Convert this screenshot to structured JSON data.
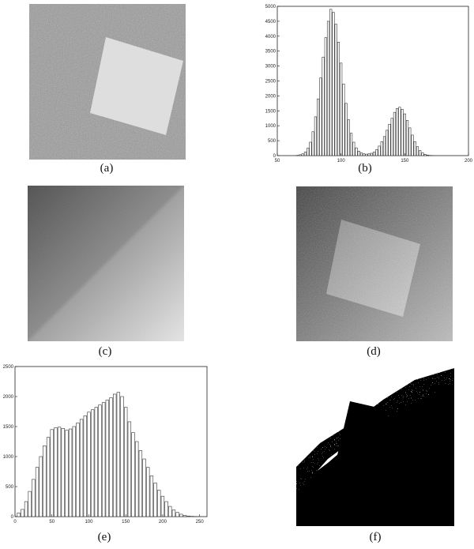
{
  "captions": {
    "a": "(a)",
    "b": "(b)",
    "c": "(c)",
    "d": "(d)",
    "e": "(e)",
    "f": "(f)"
  },
  "chart_data": [
    {
      "type": "bar",
      "panel": "b",
      "xlim": [
        50,
        200
      ],
      "ylim": [
        0,
        5000
      ],
      "xticks": [
        "50",
        "100",
        "150",
        "200"
      ],
      "yticks": [
        "0",
        "500",
        "1000",
        "1500",
        "2000",
        "2500",
        "3000",
        "3500",
        "4000",
        "4500",
        "5000"
      ],
      "x": [
        66,
        68,
        70,
        72,
        74,
        76,
        78,
        80,
        82,
        84,
        86,
        88,
        90,
        92,
        94,
        96,
        98,
        100,
        102,
        104,
        106,
        108,
        110,
        112,
        114,
        116,
        118,
        120,
        122,
        124,
        126,
        128,
        130,
        132,
        134,
        136,
        138,
        140,
        142,
        144,
        146,
        148,
        150,
        152,
        154,
        156,
        158,
        160,
        162,
        164,
        166,
        168,
        170,
        172,
        174,
        176,
        178,
        180,
        182
      ],
      "values": [
        10,
        30,
        60,
        120,
        250,
        450,
        800,
        1300,
        1900,
        2600,
        3300,
        3950,
        4500,
        4900,
        4800,
        4400,
        3800,
        3100,
        2400,
        1750,
        1200,
        750,
        450,
        260,
        150,
        90,
        60,
        50,
        60,
        80,
        120,
        200,
        320,
        470,
        640,
        850,
        1050,
        1250,
        1450,
        1580,
        1620,
        1550,
        1400,
        1180,
        930,
        690,
        470,
        300,
        170,
        90,
        45,
        20,
        8,
        3,
        0,
        0,
        0,
        0,
        0
      ]
    },
    {
      "type": "bar",
      "panel": "e",
      "xlim": [
        0,
        260
      ],
      "ylim": [
        0,
        2500
      ],
      "xticks": [
        "0",
        "50",
        "100",
        "150",
        "200",
        "250"
      ],
      "yticks": [
        "0",
        "500",
        "1000",
        "1500",
        "2000",
        "2500"
      ],
      "x": [
        5,
        10,
        15,
        20,
        25,
        30,
        35,
        40,
        45,
        50,
        55,
        60,
        65,
        70,
        75,
        80,
        85,
        90,
        95,
        100,
        105,
        110,
        115,
        120,
        125,
        130,
        135,
        140,
        145,
        150,
        155,
        160,
        165,
        170,
        175,
        180,
        185,
        190,
        195,
        200,
        205,
        210,
        215,
        220,
        225,
        230,
        235,
        240,
        245
      ],
      "values": [
        60,
        120,
        250,
        420,
        620,
        820,
        1000,
        1180,
        1320,
        1450,
        1480,
        1490,
        1470,
        1440,
        1460,
        1500,
        1560,
        1620,
        1680,
        1740,
        1780,
        1820,
        1860,
        1900,
        1940,
        1980,
        2040,
        2070,
        2000,
        1820,
        1580,
        1400,
        1250,
        1100,
        960,
        820,
        680,
        560,
        440,
        340,
        250,
        170,
        110,
        70,
        40,
        20,
        10,
        5,
        2
      ]
    }
  ]
}
